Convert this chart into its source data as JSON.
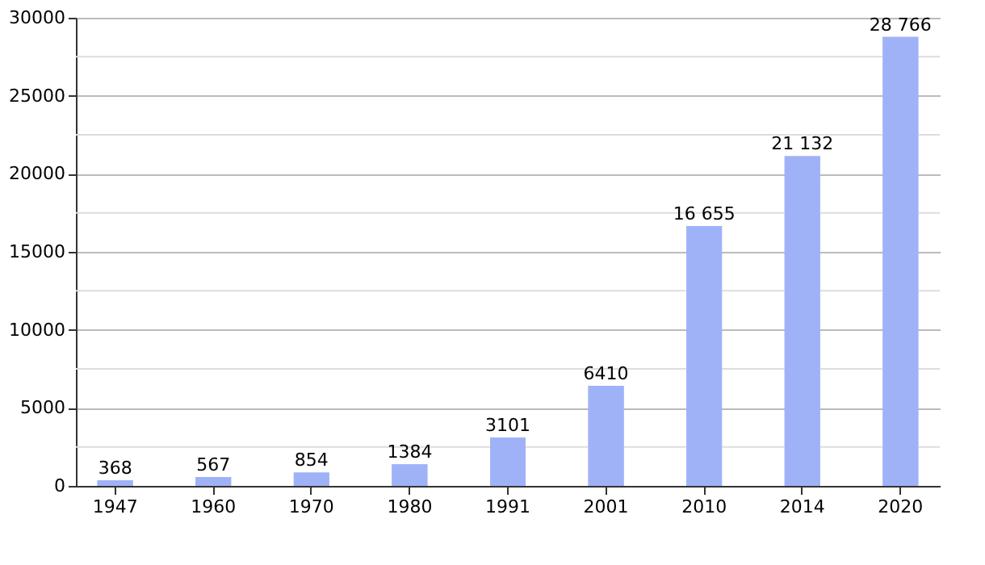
{
  "chart_data": {
    "type": "bar",
    "categories": [
      "1947",
      "1960",
      "1970",
      "1980",
      "1991",
      "2001",
      "2010",
      "2014",
      "2020"
    ],
    "values": [
      368,
      567,
      854,
      1384,
      3101,
      6410,
      16655,
      21132,
      28766
    ],
    "value_labels": [
      "368",
      "567",
      "854",
      "1384",
      "3101",
      "6410",
      "16 655",
      "21 132",
      "28 766"
    ],
    "color": "#a0b2f7",
    "ylim": [
      0,
      30000
    ],
    "yticks": [
      0,
      {
        "value": 2500,
        "label": null
      },
      5000,
      {
        "value": 7500,
        "label": null
      },
      10000,
      {
        "value": 12500,
        "label": null
      },
      15000,
      {
        "value": 17500,
        "label": null
      },
      20000,
      {
        "value": 22500,
        "label": null
      },
      25000,
      {
        "value": 27500,
        "label": null
      },
      30000
    ],
    "grid": "y"
  }
}
